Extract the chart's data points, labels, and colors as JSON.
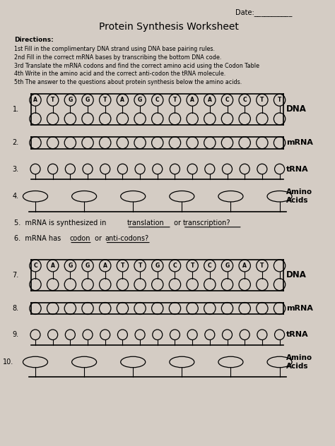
{
  "title": "Protein Synthesis Worksheet",
  "date_label": "Date:___________",
  "bg_color": "#d4ccc4",
  "directions": [
    "Directions:",
    "1st Fill in the complimentary DNA strand using DNA base pairing rules.",
    "2nd Fill in the correct mRNA bases by transcribing the bottom DNA code.",
    "3rd Translate the mRNA codons and find the correct amino acid using the Codon Table",
    "4th Write in the amino acid and the correct anti-codon the tRNA molecule.",
    "5th The answer to the questions about protein synthesis below the amino acids."
  ],
  "dna1_letters": [
    "A",
    "T",
    "G",
    "G",
    "T",
    "A",
    "G",
    "C",
    "T",
    "A",
    "A",
    "C",
    "C",
    "T",
    "T"
  ],
  "dna2_letters": [
    "C",
    "A",
    "G",
    "G",
    "A",
    "T",
    "T",
    "G",
    "C",
    "T",
    "C",
    "G",
    "A",
    "T",
    ""
  ],
  "n_circles_dna": 15,
  "n_circles_mrna": 15,
  "n_circles_trna": 15,
  "n_ellipses_amino": 6
}
